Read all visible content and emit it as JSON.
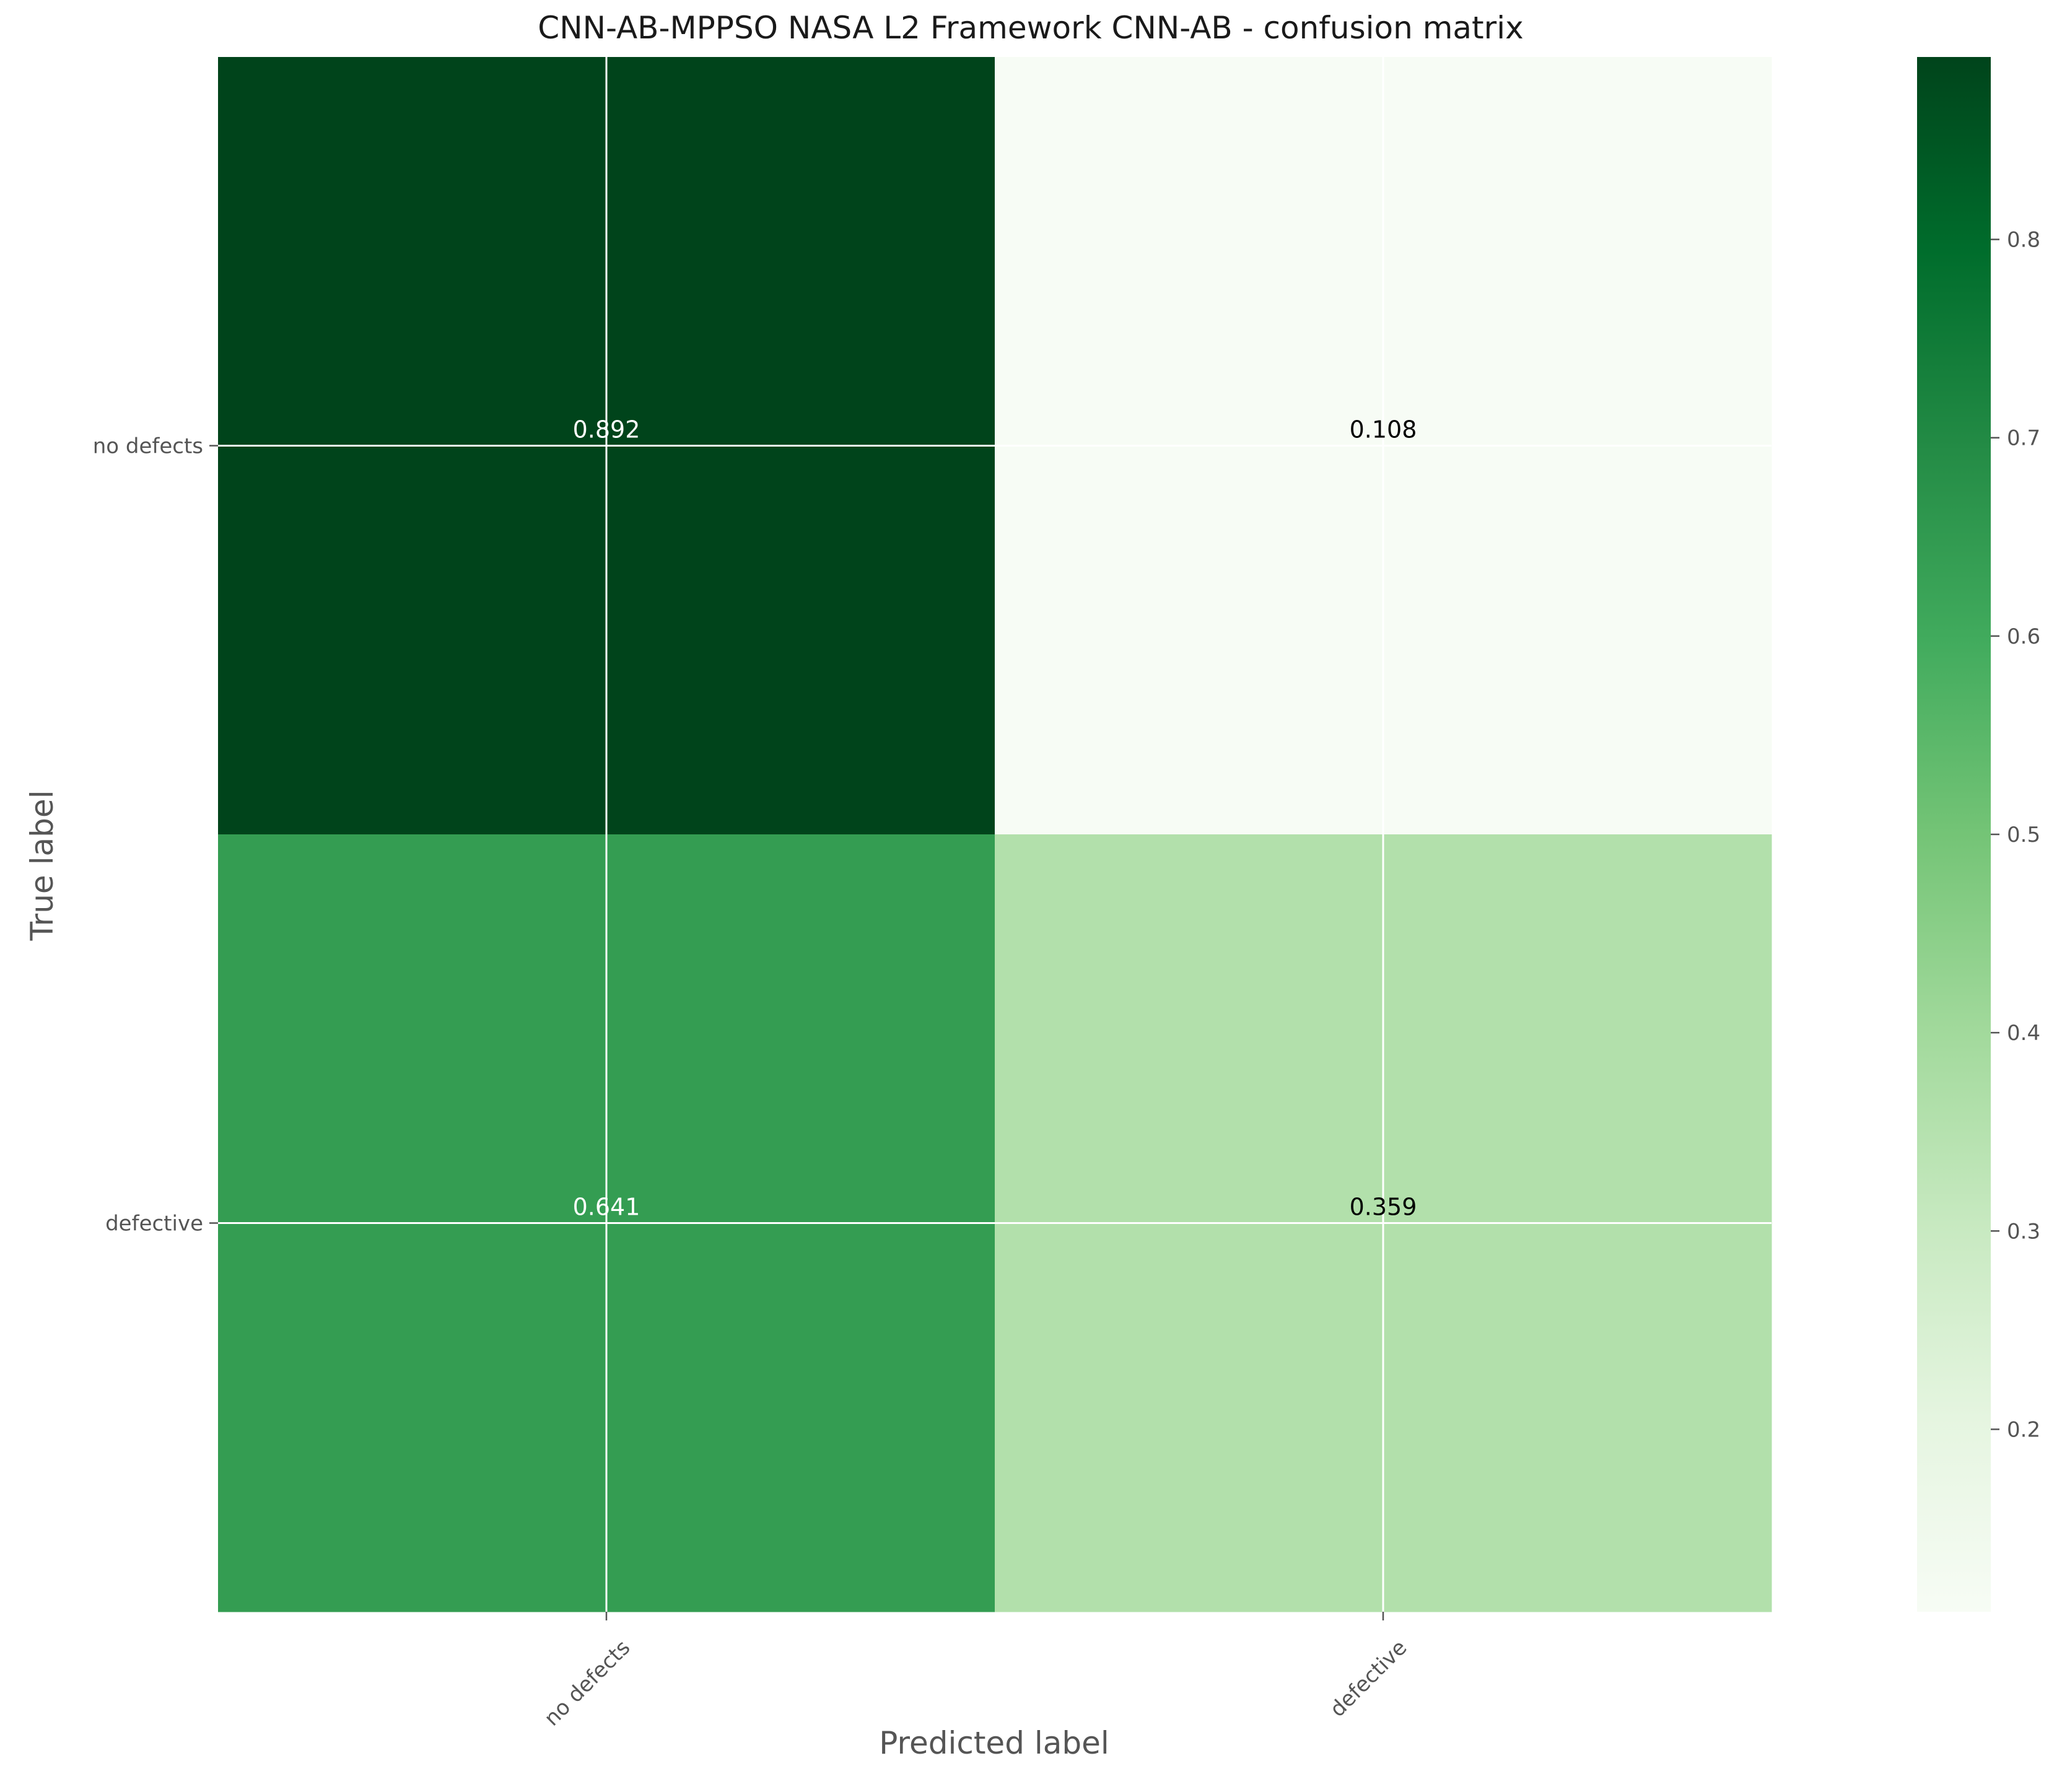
{
  "chart_data": {
    "type": "heatmap",
    "title": "CNN-AB-MPPSO NASA L2 Framework CNN-AB -  confusion matrix",
    "xlabel": "Predicted label",
    "ylabel": "True label",
    "x_categories": [
      "no defects",
      "defective"
    ],
    "y_categories": [
      "no defects",
      "defective"
    ],
    "values": [
      [
        0.892,
        0.108
      ],
      [
        0.641,
        0.359
      ]
    ],
    "value_labels": [
      [
        "0.892",
        "0.108"
      ],
      [
        "0.641",
        "0.359"
      ]
    ],
    "colormap": "Greens",
    "colorbar": {
      "vmin": 0.108,
      "vmax": 0.892,
      "ticks": [
        0.2,
        0.3,
        0.4,
        0.5,
        0.6,
        0.7,
        0.8
      ],
      "tick_labels": [
        "0.2",
        "0.3",
        "0.4",
        "0.5",
        "0.6",
        "0.7",
        "0.8"
      ]
    },
    "grid": true
  },
  "colors": {
    "grid_line": "#ffffff",
    "label_on_dark": "#ffffff",
    "label_on_light": "#000000",
    "tick": "#555555"
  }
}
